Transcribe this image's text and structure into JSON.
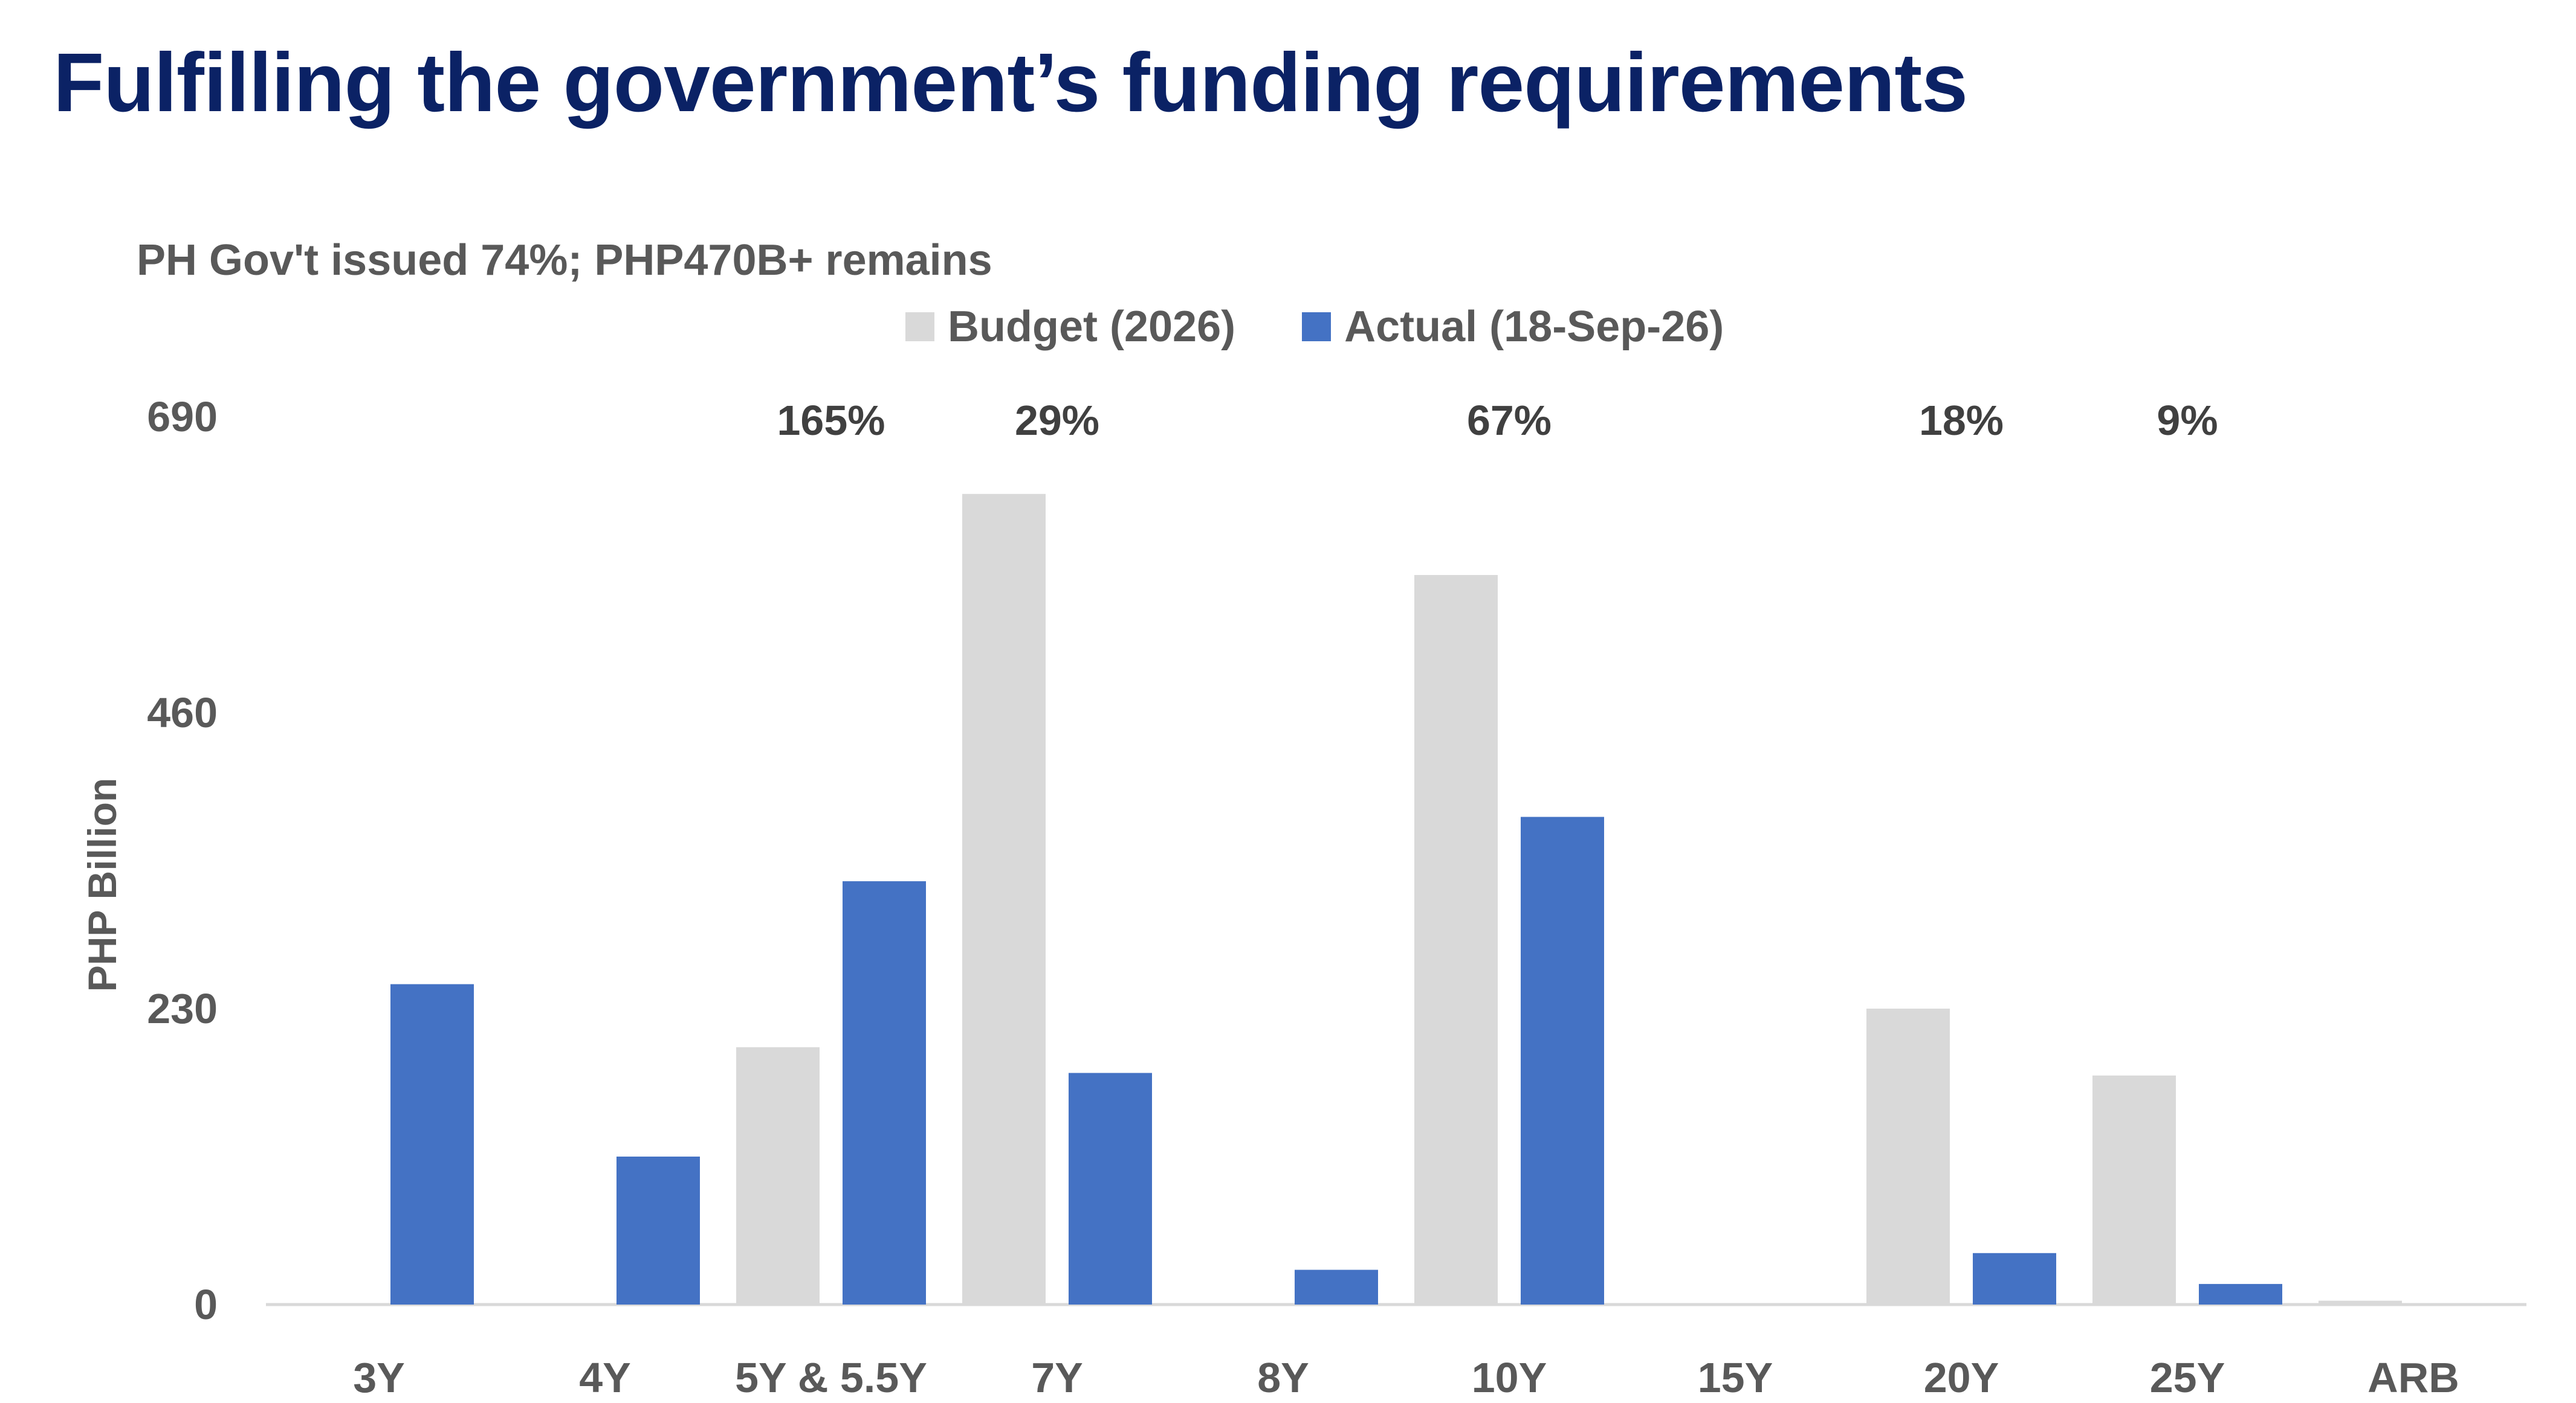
{
  "page": {
    "title": "Fulfilling the government’s funding requirements"
  },
  "chart_data": {
    "type": "bar",
    "title": "",
    "subtitle": "PH Gov't issued 74%; PHP470B+ remains",
    "ylabel": "PHP Billion",
    "xlabel": "",
    "ylim": [
      0,
      690
    ],
    "yticks": [
      "0",
      "230",
      "460",
      "690"
    ],
    "categories": [
      "3Y",
      "4Y",
      "5Y & 5.5Y",
      "7Y",
      "8Y",
      "10Y",
      "15Y",
      "20Y",
      "25Y",
      "ARB"
    ],
    "series": [
      {
        "name": "Budget (2026)",
        "color": "#d9d9d9",
        "values": [
          0,
          0,
          200,
          630,
          0,
          567,
          0,
          230,
          178,
          3
        ]
      },
      {
        "name": "Actual (18-Sep-26)",
        "color": "#4472c4",
        "values": [
          249,
          115,
          329,
          180,
          27,
          379,
          0,
          40,
          16,
          0
        ]
      }
    ],
    "pct_labels": [
      "",
      "",
      "165%",
      "29%",
      "",
      "67%",
      "",
      "18%",
      "9%",
      ""
    ],
    "legend_position": "top",
    "grid": false
  }
}
